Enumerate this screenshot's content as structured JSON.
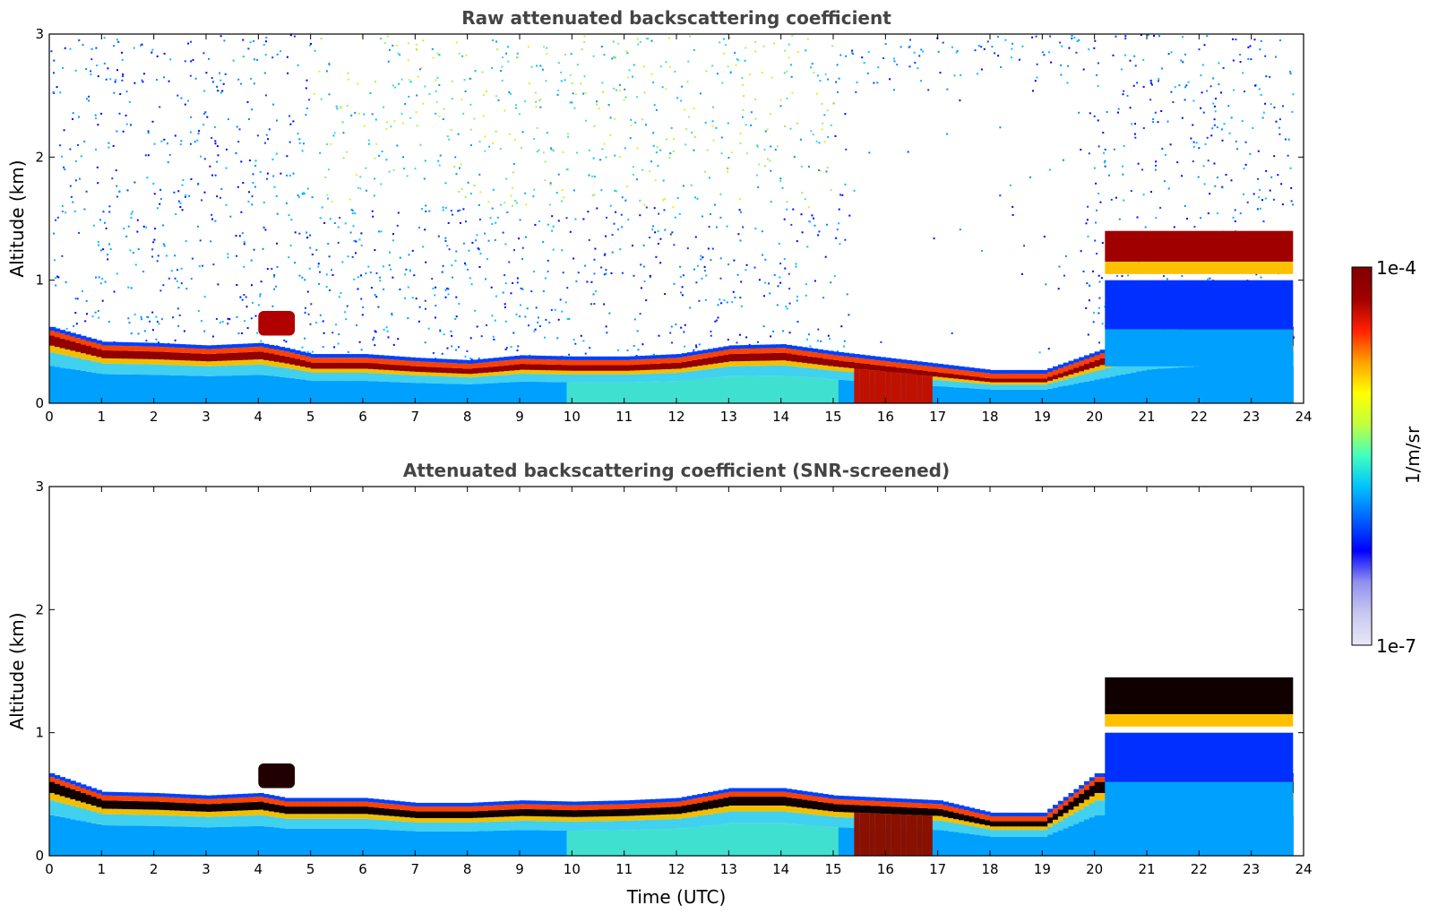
{
  "chart_data": [
    {
      "type": "heatmap",
      "title": "Raw attenuated backscattering coefficient",
      "xlabel": "",
      "ylabel": "Altitude (km)",
      "xlim": [
        0,
        24
      ],
      "ylim": [
        0,
        3
      ],
      "xticks": [
        "0",
        "1",
        "2",
        "3",
        "4",
        "5",
        "6",
        "7",
        "8",
        "9",
        "10",
        "11",
        "12",
        "13",
        "14",
        "15",
        "16",
        "17",
        "18",
        "19",
        "20",
        "21",
        "22",
        "23",
        "24"
      ],
      "yticks": [
        "0",
        "1",
        "2",
        "3"
      ],
      "boundary_layer_top_km": [
        [
          0,
          0.55
        ],
        [
          1,
          0.43
        ],
        [
          2,
          0.42
        ],
        [
          3,
          0.4
        ],
        [
          4,
          0.42
        ],
        [
          4.5,
          0.38
        ],
        [
          5,
          0.33
        ],
        [
          6,
          0.33
        ],
        [
          7,
          0.3
        ],
        [
          8,
          0.28
        ],
        [
          9,
          0.32
        ],
        [
          10,
          0.31
        ],
        [
          11,
          0.31
        ],
        [
          12,
          0.33
        ],
        [
          13,
          0.4
        ],
        [
          14,
          0.41
        ],
        [
          15,
          0.35
        ],
        [
          16,
          0.3
        ],
        [
          17,
          0.25
        ],
        [
          18,
          0.2
        ],
        [
          19,
          0.2
        ],
        [
          20,
          0.35
        ],
        [
          21,
          0.5
        ],
        [
          22,
          0.55
        ],
        [
          23,
          0.55
        ],
        [
          23.8,
          0.55
        ]
      ],
      "elevated_layer": {
        "x": [
          4.0,
          4.7
        ],
        "y_km": [
          0.55,
          0.75
        ]
      },
      "cloud_layer": {
        "x": [
          20.2,
          23.8
        ],
        "y_km": [
          1.0,
          1.4
        ]
      },
      "colorscale": "jet-log",
      "noise": true
    },
    {
      "type": "heatmap",
      "title": "Attenuated backscattering coefficient (SNR-screened)",
      "xlabel": "Time (UTC)",
      "ylabel": "Altitude (km)",
      "xlim": [
        0,
        24
      ],
      "ylim": [
        0,
        3
      ],
      "xticks": [
        "0",
        "1",
        "2",
        "3",
        "4",
        "5",
        "6",
        "7",
        "8",
        "9",
        "10",
        "11",
        "12",
        "13",
        "14",
        "15",
        "16",
        "17",
        "18",
        "19",
        "20",
        "21",
        "22",
        "23",
        "24"
      ],
      "yticks": [
        "0",
        "1",
        "2",
        "3"
      ],
      "boundary_layer_top_km": [
        [
          0,
          0.6
        ],
        [
          1,
          0.45
        ],
        [
          2,
          0.44
        ],
        [
          3,
          0.42
        ],
        [
          4,
          0.44
        ],
        [
          4.5,
          0.4
        ],
        [
          5,
          0.4
        ],
        [
          6,
          0.4
        ],
        [
          7,
          0.36
        ],
        [
          8,
          0.36
        ],
        [
          9,
          0.38
        ],
        [
          10,
          0.37
        ],
        [
          11,
          0.38
        ],
        [
          12,
          0.4
        ],
        [
          13,
          0.48
        ],
        [
          14,
          0.48
        ],
        [
          15,
          0.42
        ],
        [
          16,
          0.4
        ],
        [
          17,
          0.38
        ],
        [
          18,
          0.28
        ],
        [
          19,
          0.28
        ],
        [
          20,
          0.6
        ],
        [
          21,
          0.6
        ],
        [
          22,
          0.6
        ],
        [
          23,
          0.6
        ],
        [
          23.8,
          0.6
        ]
      ],
      "elevated_layer": {
        "x": [
          4.0,
          4.7
        ],
        "y_km": [
          0.55,
          0.75
        ]
      },
      "cloud_layer": {
        "x": [
          20.2,
          23.8
        ],
        "y_km": [
          1.0,
          1.45
        ]
      },
      "colorscale": "jet-log",
      "noise": false
    }
  ],
  "colorbar": {
    "label": "1/m/sr",
    "min_label": "1e-7",
    "max_label": "1e-4",
    "range": [
      1e-07,
      0.0001
    ],
    "colors": [
      "#e8e8f8",
      "#c8c8f0",
      "#9090f0",
      "#0000ff",
      "#0060ff",
      "#00c0ff",
      "#40ffc0",
      "#c0ff40",
      "#ffff00",
      "#ffa000",
      "#ff2000",
      "#a00000",
      "#800000"
    ]
  }
}
